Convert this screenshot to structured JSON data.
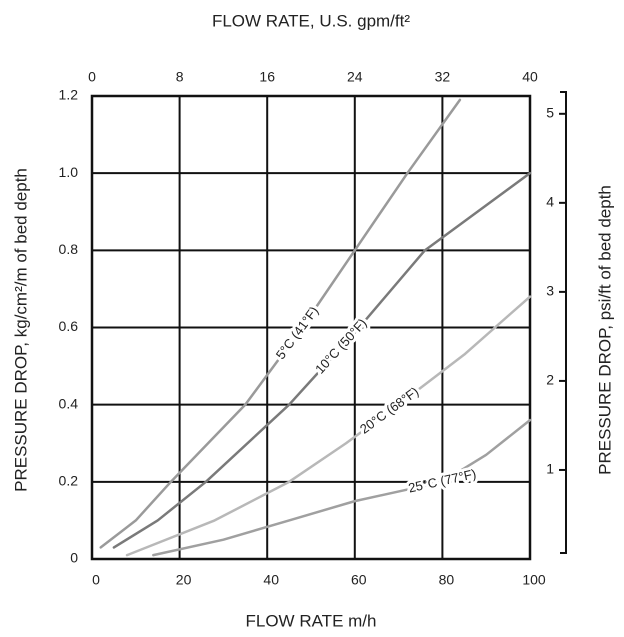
{
  "chart_data": {
    "type": "line",
    "x_label": "FLOW RATE m/h",
    "x2_label": "FLOW RATE, U.S. gpm/ft²",
    "y_label": "PRESSURE DROP, kg/cm²/m of bed depth",
    "y2_label": "PRESSURE DROP, psi/ft of bed depth",
    "xlim": [
      0,
      100
    ],
    "xticks": [
      0,
      20,
      40,
      60,
      80,
      100
    ],
    "x2lim": [
      0,
      40
    ],
    "x2ticks": [
      0,
      8,
      16,
      24,
      32,
      40
    ],
    "ylim": [
      0,
      1.2
    ],
    "yticks": [
      0,
      0.2,
      0.4,
      0.6,
      0.8,
      {
        "value": 1,
        "label": "1.0"
      },
      1.2
    ],
    "y2lim": [
      0,
      5.2
    ],
    "y2ticks": [
      1,
      2,
      3,
      4,
      5
    ],
    "grid": true,
    "series": [
      {
        "name": "5°C (41°F)",
        "color": "#9a9a9a",
        "x": [
          2,
          10,
          18,
          35,
          48,
          60,
          72,
          84
        ],
        "values": [
          0.03,
          0.1,
          0.2,
          0.4,
          0.6,
          0.8,
          1.0,
          1.19
        ]
      },
      {
        "name": "10°C (50°F)",
        "color": "#7a7a7a",
        "x": [
          5,
          15,
          26,
          45,
          61,
          76,
          88,
          100
        ],
        "values": [
          0.03,
          0.1,
          0.2,
          0.4,
          0.6,
          0.8,
          0.9,
          1.0
        ]
      },
      {
        "name": "20°C (68°F)",
        "color": "#b8b8b8",
        "x": [
          8,
          28,
          45,
          58,
          70,
          85,
          100
        ],
        "values": [
          0.01,
          0.1,
          0.2,
          0.3,
          0.4,
          0.53,
          0.68
        ]
      },
      {
        "name": "25°C (77°F)",
        "color": "#a0a0a0",
        "x": [
          14,
          30,
          45,
          60,
          80,
          90,
          100
        ],
        "values": [
          0.01,
          0.05,
          0.1,
          0.15,
          0.2,
          0.27,
          0.36
        ]
      }
    ]
  }
}
